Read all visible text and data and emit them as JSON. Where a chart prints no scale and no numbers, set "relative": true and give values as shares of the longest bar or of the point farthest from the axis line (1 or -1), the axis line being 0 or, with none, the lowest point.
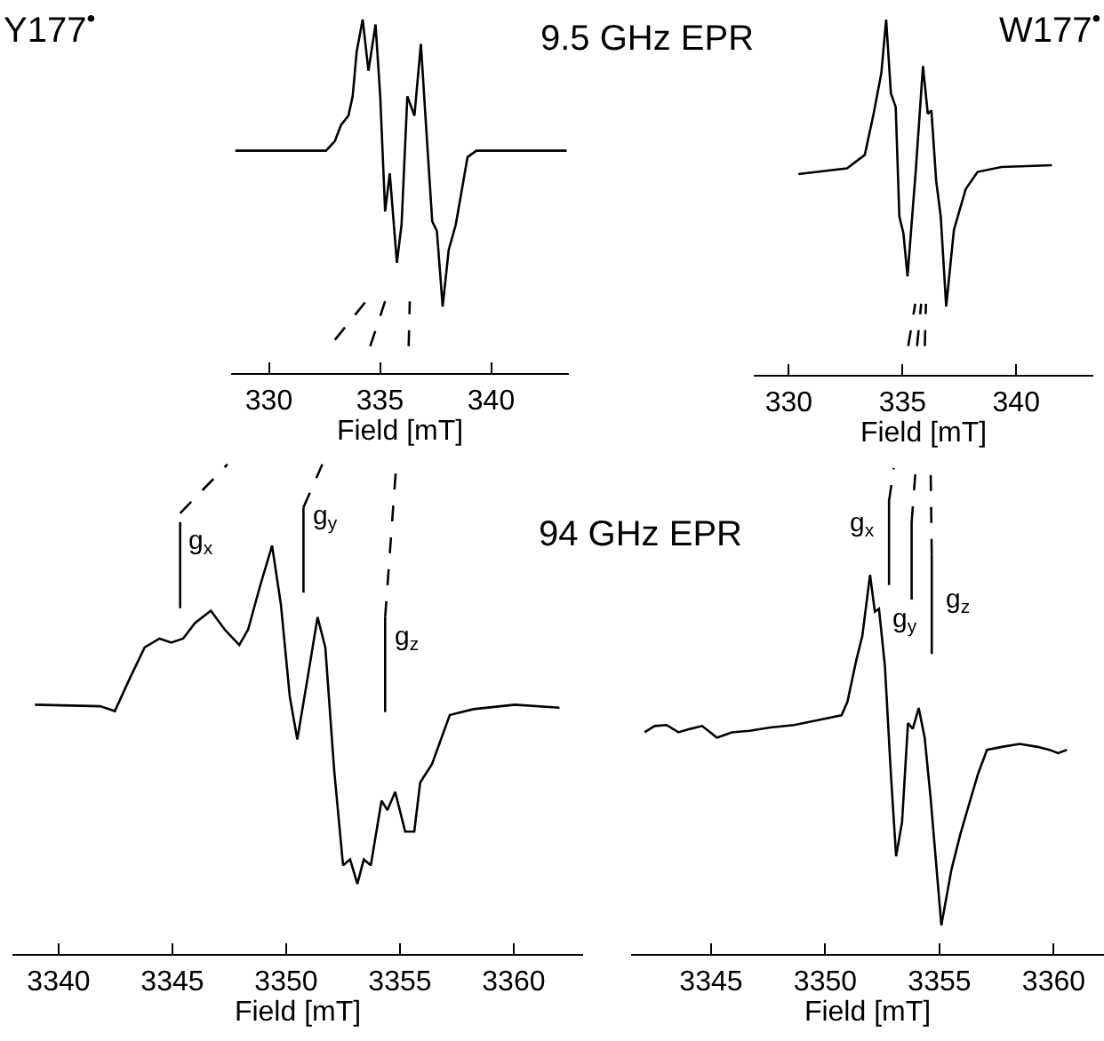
{
  "chart_data": [
    {
      "type": "line",
      "title": "Y177$^{•}$",
      "annotations": [
        "9.5 GHz EPR"
      ],
      "relative": true,
      "xlabel": "Field [mT]",
      "xlim": [
        328.3,
        343.5
      ],
      "xticks": [
        330,
        335,
        340
      ],
      "series": [
        {
          "color": "#000000",
          "x": [
            328.49,
            332.57,
            332.97,
            333.24,
            333.58,
            333.77,
            333.95,
            334.22,
            334.48,
            334.8,
            335.01,
            335.23,
            335.44,
            335.76,
            335.97,
            336.23,
            336.55,
            336.84,
            337.08,
            337.35,
            337.56,
            337.82,
            338.09,
            338.41,
            338.94,
            339.34,
            343.4
          ],
          "values": [
            0.629,
            0.629,
            0.656,
            0.701,
            0.728,
            0.783,
            0.909,
            1.0,
            0.855,
            0.986,
            0.783,
            0.457,
            0.565,
            0.312,
            0.42,
            0.783,
            0.728,
            0.931,
            0.692,
            0.429,
            0.402,
            0.188,
            0.348,
            0.42,
            0.611,
            0.629,
            0.629
          ]
        },
        {
          "color": "#000000",
          "line_style": "dashed",
          "x": [
            332.97,
            334.37
          ],
          "values": [
            0.094,
            0.203
          ]
        },
        {
          "color": "#000000",
          "line_style": "dashed",
          "x": [
            334.56,
            335.23
          ],
          "values": [
            0.076,
            0.203
          ]
        },
        {
          "color": "#000000",
          "line_style": "dashed",
          "x": [
            336.29,
            336.34
          ],
          "values": [
            0.076,
            0.203
          ]
        }
      ]
    },
    {
      "type": "line",
      "title": "W177$^{•}$",
      "relative": true,
      "xlabel": "Field [mT]",
      "xlim": [
        328.46,
        343.39
      ],
      "xticks": [
        330,
        335,
        340
      ],
      "series": [
        {
          "color": "#000000",
          "x": [
            330.42,
            332.56,
            333.34,
            333.73,
            334.07,
            334.28,
            334.49,
            334.7,
            334.86,
            335.04,
            335.22,
            335.59,
            335.9,
            336.11,
            336.27,
            336.48,
            336.68,
            336.92,
            337.26,
            337.78,
            338.3,
            339.35,
            341.57
          ],
          "values": [
            0.565,
            0.581,
            0.619,
            0.735,
            0.85,
            1.0,
            0.792,
            0.754,
            0.446,
            0.398,
            0.277,
            0.581,
            0.869,
            0.735,
            0.744,
            0.546,
            0.446,
            0.192,
            0.408,
            0.523,
            0.571,
            0.585,
            0.59
          ]
        },
        {
          "color": "#000000",
          "line_style": "dashed",
          "x": [
            335.25,
            335.56
          ],
          "values": [
            0.081,
            0.2
          ]
        },
        {
          "color": "#000000",
          "line_style": "dashed",
          "x": [
            335.64,
            335.82
          ],
          "values": [
            0.081,
            0.2
          ]
        },
        {
          "color": "#000000",
          "line_style": "dashed",
          "x": [
            335.98,
            336.03
          ],
          "values": [
            0.081,
            0.2
          ]
        }
      ]
    },
    {
      "type": "line",
      "relative": true,
      "xlabel": "Field [mT]",
      "xlim": [
        3337.97,
        3363.05
      ],
      "xticks": [
        3340,
        3345,
        3350,
        3355,
        3360
      ],
      "annotations": [
        "94 GHz EPR",
        "g$_{x}$",
        "g$_{y}$",
        "g$_{z}$"
      ],
      "series": [
        {
          "color": "#000000",
          "x": [
            3338.96,
            3341.82,
            3342.47,
            3343.13,
            3343.78,
            3344.43,
            3344.95,
            3345.47,
            3345.99,
            3346.69,
            3347.29,
            3347.94,
            3348.33,
            3348.85,
            3349.38,
            3349.77,
            3350.16,
            3350.49,
            3350.94,
            3351.38,
            3351.72,
            3352.11,
            3352.5,
            3352.81,
            3353.13,
            3353.41,
            3353.72,
            3354.19,
            3354.45,
            3354.79,
            3355.23,
            3355.63,
            3355.89,
            3356.41,
            3357.19,
            3358.23,
            3360.05,
            3362.01
          ],
          "values": [
            0.509,
            0.506,
            0.496,
            0.563,
            0.626,
            0.644,
            0.636,
            0.644,
            0.676,
            0.701,
            0.663,
            0.631,
            0.663,
            0.751,
            0.834,
            0.713,
            0.525,
            0.438,
            0.563,
            0.688,
            0.626,
            0.375,
            0.181,
            0.193,
            0.143,
            0.193,
            0.181,
            0.313,
            0.294,
            0.331,
            0.25,
            0.25,
            0.35,
            0.388,
            0.488,
            0.5,
            0.509,
            0.503
          ]
        },
        {
          "color": "#000000",
          "x": [
            3345.34,
            3345.34
          ],
          "values": [
            0.706,
            0.882
          ]
        },
        {
          "color": "#000000",
          "x": [
            3350.76,
            3350.76
          ],
          "values": [
            0.738,
            0.912
          ]
        },
        {
          "color": "#000000",
          "x": [
            3354.35,
            3354.35
          ],
          "values": [
            0.494,
            0.688
          ]
        },
        {
          "color": "#000000",
          "line_style": "dashed",
          "x": [
            3345.34,
            3347.42
          ],
          "values": [
            0.9,
            1.0
          ]
        },
        {
          "color": "#000000",
          "line_style": "dashed",
          "x": [
            3350.76,
            3351.59
          ],
          "values": [
            0.912,
            1.0
          ]
        },
        {
          "color": "#000000",
          "line_style": "dashed",
          "x": [
            3354.35,
            3354.84
          ],
          "values": [
            0.688,
            1.0
          ]
        }
      ]
    },
    {
      "type": "line",
      "relative": true,
      "xlabel": "Field [mT]",
      "xlim": [
        3341.5,
        3362.2
      ],
      "xticks": [
        3345,
        3350,
        3355,
        3360
      ],
      "annotations": [
        "g$_{x}$",
        "g$_{y}$",
        "g$_{z}$"
      ],
      "series": [
        {
          "color": "#000000",
          "x": [
            3342.09,
            3342.53,
            3343.05,
            3343.57,
            3344.09,
            3344.61,
            3345.26,
            3345.91,
            3346.69,
            3347.6,
            3348.64,
            3349.68,
            3350.71,
            3350.97,
            3351.36,
            3351.62,
            3351.96,
            3352.17,
            3352.35,
            3352.61,
            3352.87,
            3353.1,
            3353.36,
            3353.62,
            3353.83,
            3354.09,
            3354.35,
            3354.61,
            3355.08,
            3355.52,
            3355.91,
            3356.3,
            3356.69,
            3357.08,
            3357.73,
            3358.51,
            3359.29,
            3359.81,
            3360.19,
            3360.58
          ],
          "values": [
            0.456,
            0.469,
            0.471,
            0.456,
            0.463,
            0.469,
            0.445,
            0.456,
            0.459,
            0.466,
            0.471,
            0.481,
            0.491,
            0.519,
            0.605,
            0.654,
            0.78,
            0.704,
            0.71,
            0.592,
            0.371,
            0.201,
            0.271,
            0.475,
            0.463,
            0.506,
            0.445,
            0.321,
            0.059,
            0.173,
            0.246,
            0.309,
            0.371,
            0.42,
            0.426,
            0.432,
            0.426,
            0.42,
            0.413,
            0.42
          ]
        },
        {
          "color": "#000000",
          "x": [
            3352.79,
            3352.79
          ],
          "values": [
            0.759,
            0.932
          ]
        },
        {
          "color": "#000000",
          "x": [
            3353.78,
            3353.78
          ],
          "values": [
            0.729,
            0.888
          ]
        },
        {
          "color": "#000000",
          "x": [
            3354.66,
            3354.66
          ],
          "values": [
            0.617,
            0.821
          ]
        },
        {
          "color": "#000000",
          "line_style": "dashed",
          "x": [
            3352.79,
            3353.0
          ],
          "values": [
            0.932,
            1.0
          ]
        },
        {
          "color": "#000000",
          "line_style": "dashed",
          "x": [
            3353.78,
            3353.96
          ],
          "values": [
            0.888,
            1.0
          ]
        },
        {
          "color": "#000000",
          "line_style": "dashed",
          "x": [
            3354.66,
            3354.61
          ],
          "values": [
            0.821,
            1.0
          ]
        }
      ]
    }
  ]
}
